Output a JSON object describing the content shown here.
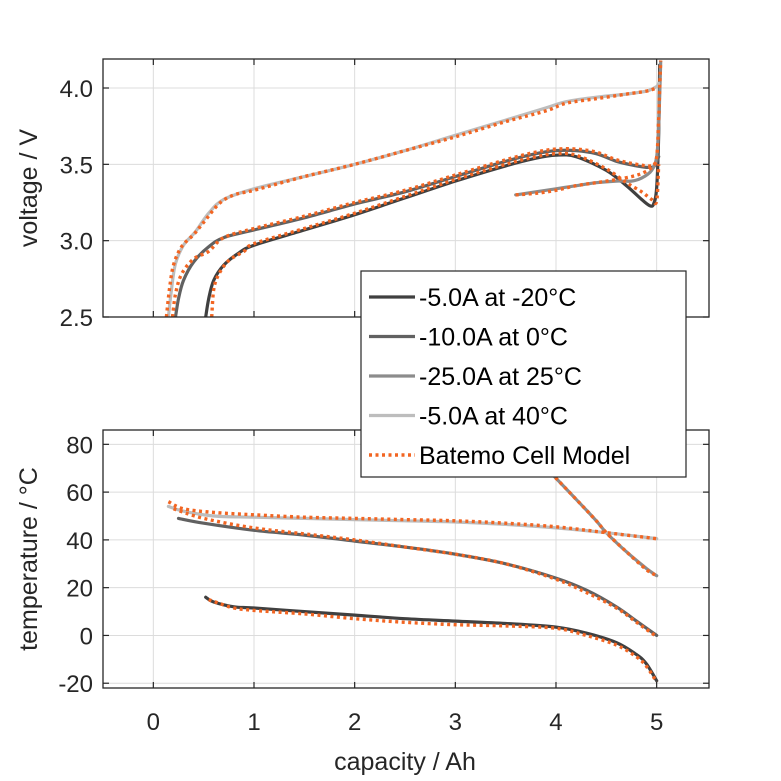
{
  "chart_data": [
    {
      "type": "line",
      "id": "voltage",
      "title": "",
      "xlabel": "",
      "ylabel": "voltage / V",
      "xlim": [
        -0.5,
        5.52
      ],
      "ylim": [
        2.5,
        4.19
      ],
      "xticks": [
        0,
        1,
        2,
        3,
        4,
        5
      ],
      "xtick_labels": [],
      "yticks": [
        2.5,
        3.0,
        3.5,
        4.0
      ],
      "ytick_labels": [
        "2.5",
        "3.0",
        "3.5",
        "4.0"
      ],
      "grid": true,
      "series": [
        {
          "name": "-5.0A at -20°C",
          "kind": "measured",
          "color": "#404040",
          "x": [
            0.52,
            0.55,
            0.6,
            0.7,
            0.85,
            1.0,
            1.5,
            2.0,
            2.5,
            3.0,
            3.5,
            3.8,
            4.0,
            4.2,
            4.5,
            4.7,
            4.85,
            4.93,
            4.97,
            5.0,
            5.02,
            5.03
          ],
          "y": [
            2.5,
            2.62,
            2.74,
            2.84,
            2.92,
            2.97,
            3.07,
            3.17,
            3.28,
            3.39,
            3.49,
            3.54,
            3.56,
            3.55,
            3.46,
            3.36,
            3.27,
            3.23,
            3.24,
            3.35,
            3.7,
            4.15
          ]
        },
        {
          "name": "-10.0A at 0°C",
          "kind": "measured",
          "color": "#616161",
          "x": [
            0.22,
            0.25,
            0.3,
            0.4,
            0.55,
            0.7,
            1.0,
            1.5,
            2.0,
            2.5,
            3.0,
            3.5,
            3.8,
            4.0,
            4.2,
            4.4,
            4.6,
            4.8,
            4.92,
            4.98,
            5.02
          ],
          "y": [
            2.5,
            2.62,
            2.74,
            2.86,
            2.96,
            3.02,
            3.07,
            3.15,
            3.24,
            3.32,
            3.42,
            3.52,
            3.57,
            3.59,
            3.59,
            3.57,
            3.52,
            3.49,
            3.48,
            3.49,
            3.55
          ]
        },
        {
          "name": "-25.0A at 25°C",
          "kind": "measured",
          "color": "#8c8c8c",
          "x": [
            3.6,
            3.8,
            4.0,
            4.2,
            4.4,
            4.6,
            4.75,
            4.85,
            4.95,
            5.0,
            5.02,
            5.03,
            5.04
          ],
          "y": [
            3.3,
            3.32,
            3.34,
            3.36,
            3.38,
            3.39,
            3.39,
            3.41,
            3.46,
            3.55,
            3.75,
            3.95,
            4.17
          ]
        },
        {
          "name": "-5.0A at 40°C",
          "kind": "measured",
          "color": "#bdbdbd",
          "x": [
            0.15,
            0.18,
            0.22,
            0.3,
            0.42,
            0.55,
            0.7,
            1.0,
            1.5,
            2.0,
            2.5,
            3.0,
            3.5,
            3.9,
            4.1,
            4.4,
            4.7,
            4.9,
            5.0,
            5.02
          ],
          "y": [
            2.5,
            2.68,
            2.85,
            2.97,
            3.06,
            3.18,
            3.27,
            3.34,
            3.42,
            3.5,
            3.59,
            3.69,
            3.79,
            3.87,
            3.91,
            3.94,
            3.96,
            3.98,
            4.01,
            4.03
          ]
        }
      ],
      "model_series": {
        "name": "Batemo Cell Model",
        "color": "#f26522",
        "dash": "dotted",
        "curves": [
          {
            "x": [
              0.58,
              0.6,
              0.65,
              0.75,
              0.9,
              1.0,
              1.5,
              2.0,
              2.5,
              3.0,
              3.5,
              3.8,
              4.0,
              4.2,
              4.5,
              4.7,
              4.85,
              4.95,
              5.0,
              5.02
            ],
            "y": [
              2.5,
              2.68,
              2.78,
              2.87,
              2.93,
              2.98,
              3.08,
              3.18,
              3.29,
              3.4,
              3.5,
              3.55,
              3.57,
              3.56,
              3.47,
              3.38,
              3.32,
              3.27,
              3.26,
              3.5
            ]
          },
          {
            "x": [
              0.19,
              0.22,
              0.28,
              0.4,
              0.55,
              0.7,
              1.0,
              1.5,
              2.0,
              2.5,
              3.0,
              3.5,
              3.8,
              4.0,
              4.2,
              4.4,
              4.6,
              4.8,
              4.95,
              5.0
            ],
            "y": [
              2.5,
              2.65,
              2.78,
              2.88,
              2.93,
              3.02,
              3.08,
              3.16,
              3.25,
              3.33,
              3.43,
              3.53,
              3.58,
              3.6,
              3.6,
              3.58,
              3.53,
              3.5,
              3.49,
              3.52
            ]
          },
          {
            "x": [
              3.6,
              3.8,
              4.0,
              4.2,
              4.4,
              4.6,
              4.75,
              4.85,
              4.95,
              5.0,
              5.02,
              5.03,
              5.04
            ],
            "y": [
              3.3,
              3.31,
              3.33,
              3.36,
              3.38,
              3.4,
              3.42,
              3.44,
              3.48,
              3.55,
              3.8,
              4.0,
              4.18
            ]
          },
          {
            "x": [
              0.13,
              0.16,
              0.2,
              0.28,
              0.4,
              0.5,
              0.65,
              0.8,
              1.0,
              1.5,
              2.0,
              2.5,
              3.0,
              3.5,
              3.9,
              4.1,
              4.4,
              4.7,
              4.9,
              5.0
            ],
            "y": [
              2.5,
              2.68,
              2.84,
              2.96,
              3.04,
              3.12,
              3.24,
              3.3,
              3.33,
              3.42,
              3.5,
              3.59,
              3.68,
              3.78,
              3.85,
              3.9,
              3.93,
              3.96,
              3.98,
              4.0
            ]
          }
        ]
      }
    },
    {
      "type": "line",
      "id": "temperature",
      "title": "",
      "xlabel": "capacity / Ah",
      "ylabel": "temperature / °C",
      "xlim": [
        -0.5,
        5.52
      ],
      "ylim": [
        -22,
        86
      ],
      "xticks": [
        0,
        1,
        2,
        3,
        4,
        5
      ],
      "xtick_labels": [
        "0",
        "1",
        "2",
        "3",
        "4",
        "5"
      ],
      "yticks": [
        -20,
        0,
        20,
        40,
        60,
        80
      ],
      "ytick_labels": [
        "-20",
        "0",
        "20",
        "40",
        "60",
        "80"
      ],
      "grid": true,
      "series": [
        {
          "name": "-5.0A at -20°C",
          "kind": "measured",
          "color": "#404040",
          "x": [
            0.52,
            0.6,
            0.8,
            1.0,
            1.5,
            2.0,
            2.5,
            3.0,
            3.5,
            4.0,
            4.3,
            4.6,
            4.8,
            4.9,
            5.0
          ],
          "y": [
            16,
            14,
            12,
            11.5,
            10,
            8.5,
            7,
            6,
            5,
            3.5,
            1,
            -3,
            -8,
            -12,
            -19
          ]
        },
        {
          "name": "-10.0A at 0°C",
          "kind": "measured",
          "color": "#616161",
          "x": [
            0.25,
            0.5,
            1.0,
            1.5,
            2.0,
            2.5,
            3.0,
            3.5,
            4.0,
            4.3,
            4.6,
            4.8,
            5.0
          ],
          "y": [
            49,
            47,
            44,
            42,
            39.5,
            37,
            34,
            30,
            24,
            19,
            12,
            6,
            0
          ]
        },
        {
          "name": "-25.0A at 25°C",
          "kind": "measured",
          "color": "#8c8c8c",
          "x": [
            3.95,
            4.2,
            4.4,
            4.5,
            4.7,
            4.9,
            5.0
          ],
          "y": [
            68,
            57,
            48,
            43,
            35,
            28,
            25
          ]
        },
        {
          "name": "-5.0A at 40°C",
          "kind": "measured",
          "color": "#bdbdbd",
          "x": [
            0.15,
            0.3,
            0.6,
            1.0,
            1.5,
            2.0,
            2.5,
            3.0,
            3.5,
            4.0,
            4.5,
            5.0
          ],
          "y": [
            54,
            52,
            50,
            49.5,
            49,
            48.5,
            48,
            47.5,
            46.5,
            45,
            43,
            40.5
          ]
        }
      ],
      "model_series": {
        "name": "Batemo Cell Model",
        "color": "#f26522",
        "dash": "dotted",
        "curves": [
          {
            "x": [
              0.55,
              0.65,
              0.8,
              1.0,
              1.5,
              2.0,
              2.5,
              3.0,
              3.5,
              4.0,
              4.3,
              4.6,
              4.8,
              4.9,
              5.0
            ],
            "y": [
              15,
              13.5,
              11.5,
              10.5,
              9,
              7,
              5.5,
              4.5,
              4,
              3,
              0,
              -4,
              -9,
              -13,
              -19.5
            ]
          },
          {
            "x": [
              0.2,
              0.5,
              1.0,
              1.5,
              2.0,
              2.5,
              3.0,
              3.5,
              4.0,
              4.3,
              4.6,
              4.8,
              5.0
            ],
            "y": [
              53,
              49,
              45,
              42.5,
              40,
              37,
              34,
              30,
              23.5,
              18,
              11.5,
              5.5,
              -0.5
            ]
          },
          {
            "x": [
              3.95,
              4.2,
              4.4,
              4.5,
              4.7,
              4.9,
              5.0
            ],
            "y": [
              68,
              57,
              48,
              43,
              35,
              27.5,
              25
            ]
          },
          {
            "x": [
              0.15,
              0.3,
              0.6,
              1.0,
              1.5,
              2.0,
              2.5,
              3.0,
              3.5,
              4.0,
              4.5,
              5.0
            ],
            "y": [
              56,
              53,
              51.5,
              50.5,
              49.5,
              49,
              48.5,
              48,
              47,
              45.5,
              43,
              40.5
            ]
          }
        ]
      }
    }
  ],
  "legend": {
    "placement": "center-right, spanning both plots",
    "entries": [
      {
        "label": "-5.0A at -20°C",
        "color": "#404040",
        "style": "solid"
      },
      {
        "label": "-10.0A at 0°C",
        "color": "#616161",
        "style": "solid"
      },
      {
        "label": "-25.0A at 25°C",
        "color": "#8c8c8c",
        "style": "solid"
      },
      {
        "label": "-5.0A at 40°C",
        "color": "#bdbdbd",
        "style": "solid"
      },
      {
        "label": "Batemo Cell Model",
        "color": "#f26522",
        "style": "dotted"
      }
    ]
  }
}
